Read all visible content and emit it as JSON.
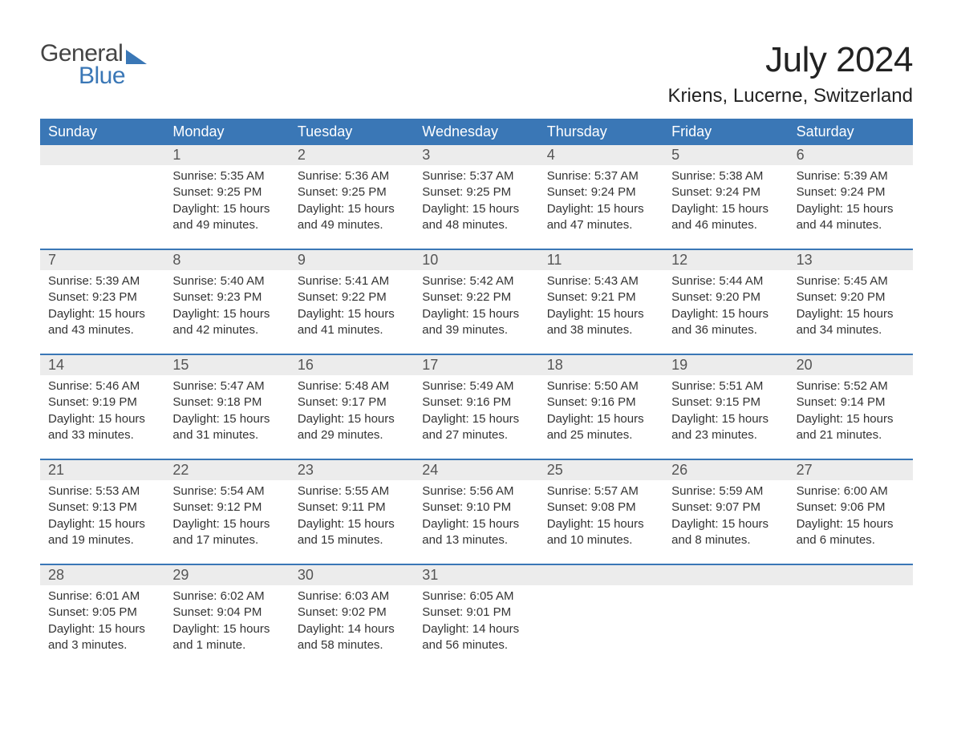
{
  "logo": {
    "line1": "General",
    "line2": "Blue"
  },
  "title": "July 2024",
  "location": "Kriens, Lucerne, Switzerland",
  "colors": {
    "brand_blue": "#3a77b6",
    "header_bg": "#3a77b6",
    "header_text": "#ffffff",
    "daynum_bg": "#ececec",
    "text": "#333333",
    "background": "#ffffff"
  },
  "weekdays": [
    "Sunday",
    "Monday",
    "Tuesday",
    "Wednesday",
    "Thursday",
    "Friday",
    "Saturday"
  ],
  "weeks": [
    [
      {
        "n": "",
        "sr": "",
        "ss": "",
        "dl": ""
      },
      {
        "n": "1",
        "sr": "Sunrise: 5:35 AM",
        "ss": "Sunset: 9:25 PM",
        "dl": "Daylight: 15 hours and 49 minutes."
      },
      {
        "n": "2",
        "sr": "Sunrise: 5:36 AM",
        "ss": "Sunset: 9:25 PM",
        "dl": "Daylight: 15 hours and 49 minutes."
      },
      {
        "n": "3",
        "sr": "Sunrise: 5:37 AM",
        "ss": "Sunset: 9:25 PM",
        "dl": "Daylight: 15 hours and 48 minutes."
      },
      {
        "n": "4",
        "sr": "Sunrise: 5:37 AM",
        "ss": "Sunset: 9:24 PM",
        "dl": "Daylight: 15 hours and 47 minutes."
      },
      {
        "n": "5",
        "sr": "Sunrise: 5:38 AM",
        "ss": "Sunset: 9:24 PM",
        "dl": "Daylight: 15 hours and 46 minutes."
      },
      {
        "n": "6",
        "sr": "Sunrise: 5:39 AM",
        "ss": "Sunset: 9:24 PM",
        "dl": "Daylight: 15 hours and 44 minutes."
      }
    ],
    [
      {
        "n": "7",
        "sr": "Sunrise: 5:39 AM",
        "ss": "Sunset: 9:23 PM",
        "dl": "Daylight: 15 hours and 43 minutes."
      },
      {
        "n": "8",
        "sr": "Sunrise: 5:40 AM",
        "ss": "Sunset: 9:23 PM",
        "dl": "Daylight: 15 hours and 42 minutes."
      },
      {
        "n": "9",
        "sr": "Sunrise: 5:41 AM",
        "ss": "Sunset: 9:22 PM",
        "dl": "Daylight: 15 hours and 41 minutes."
      },
      {
        "n": "10",
        "sr": "Sunrise: 5:42 AM",
        "ss": "Sunset: 9:22 PM",
        "dl": "Daylight: 15 hours and 39 minutes."
      },
      {
        "n": "11",
        "sr": "Sunrise: 5:43 AM",
        "ss": "Sunset: 9:21 PM",
        "dl": "Daylight: 15 hours and 38 minutes."
      },
      {
        "n": "12",
        "sr": "Sunrise: 5:44 AM",
        "ss": "Sunset: 9:20 PM",
        "dl": "Daylight: 15 hours and 36 minutes."
      },
      {
        "n": "13",
        "sr": "Sunrise: 5:45 AM",
        "ss": "Sunset: 9:20 PM",
        "dl": "Daylight: 15 hours and 34 minutes."
      }
    ],
    [
      {
        "n": "14",
        "sr": "Sunrise: 5:46 AM",
        "ss": "Sunset: 9:19 PM",
        "dl": "Daylight: 15 hours and 33 minutes."
      },
      {
        "n": "15",
        "sr": "Sunrise: 5:47 AM",
        "ss": "Sunset: 9:18 PM",
        "dl": "Daylight: 15 hours and 31 minutes."
      },
      {
        "n": "16",
        "sr": "Sunrise: 5:48 AM",
        "ss": "Sunset: 9:17 PM",
        "dl": "Daylight: 15 hours and 29 minutes."
      },
      {
        "n": "17",
        "sr": "Sunrise: 5:49 AM",
        "ss": "Sunset: 9:16 PM",
        "dl": "Daylight: 15 hours and 27 minutes."
      },
      {
        "n": "18",
        "sr": "Sunrise: 5:50 AM",
        "ss": "Sunset: 9:16 PM",
        "dl": "Daylight: 15 hours and 25 minutes."
      },
      {
        "n": "19",
        "sr": "Sunrise: 5:51 AM",
        "ss": "Sunset: 9:15 PM",
        "dl": "Daylight: 15 hours and 23 minutes."
      },
      {
        "n": "20",
        "sr": "Sunrise: 5:52 AM",
        "ss": "Sunset: 9:14 PM",
        "dl": "Daylight: 15 hours and 21 minutes."
      }
    ],
    [
      {
        "n": "21",
        "sr": "Sunrise: 5:53 AM",
        "ss": "Sunset: 9:13 PM",
        "dl": "Daylight: 15 hours and 19 minutes."
      },
      {
        "n": "22",
        "sr": "Sunrise: 5:54 AM",
        "ss": "Sunset: 9:12 PM",
        "dl": "Daylight: 15 hours and 17 minutes."
      },
      {
        "n": "23",
        "sr": "Sunrise: 5:55 AM",
        "ss": "Sunset: 9:11 PM",
        "dl": "Daylight: 15 hours and 15 minutes."
      },
      {
        "n": "24",
        "sr": "Sunrise: 5:56 AM",
        "ss": "Sunset: 9:10 PM",
        "dl": "Daylight: 15 hours and 13 minutes."
      },
      {
        "n": "25",
        "sr": "Sunrise: 5:57 AM",
        "ss": "Sunset: 9:08 PM",
        "dl": "Daylight: 15 hours and 10 minutes."
      },
      {
        "n": "26",
        "sr": "Sunrise: 5:59 AM",
        "ss": "Sunset: 9:07 PM",
        "dl": "Daylight: 15 hours and 8 minutes."
      },
      {
        "n": "27",
        "sr": "Sunrise: 6:00 AM",
        "ss": "Sunset: 9:06 PM",
        "dl": "Daylight: 15 hours and 6 minutes."
      }
    ],
    [
      {
        "n": "28",
        "sr": "Sunrise: 6:01 AM",
        "ss": "Sunset: 9:05 PM",
        "dl": "Daylight: 15 hours and 3 minutes."
      },
      {
        "n": "29",
        "sr": "Sunrise: 6:02 AM",
        "ss": "Sunset: 9:04 PM",
        "dl": "Daylight: 15 hours and 1 minute."
      },
      {
        "n": "30",
        "sr": "Sunrise: 6:03 AM",
        "ss": "Sunset: 9:02 PM",
        "dl": "Daylight: 14 hours and 58 minutes."
      },
      {
        "n": "31",
        "sr": "Sunrise: 6:05 AM",
        "ss": "Sunset: 9:01 PM",
        "dl": "Daylight: 14 hours and 56 minutes."
      },
      {
        "n": "",
        "sr": "",
        "ss": "",
        "dl": ""
      },
      {
        "n": "",
        "sr": "",
        "ss": "",
        "dl": ""
      },
      {
        "n": "",
        "sr": "",
        "ss": "",
        "dl": ""
      }
    ]
  ]
}
